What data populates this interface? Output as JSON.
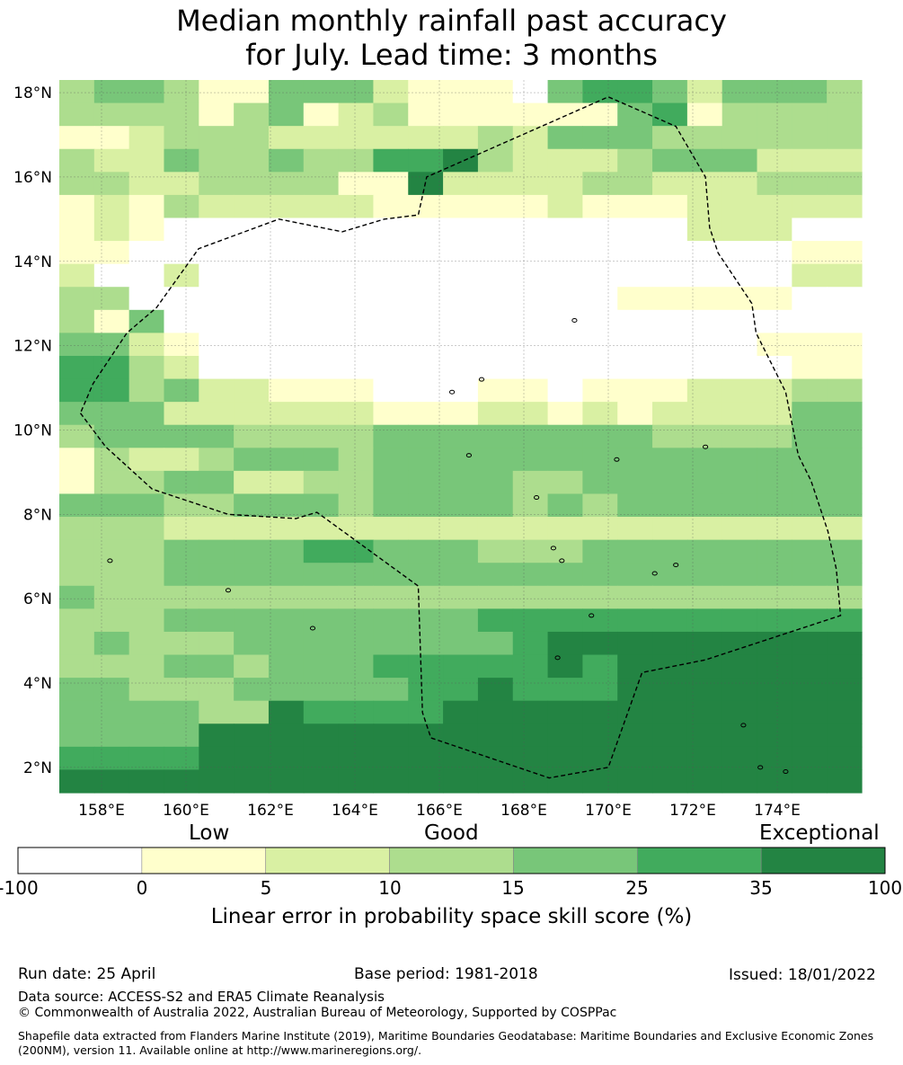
{
  "title_line1": "Median monthly rainfall past accuracy",
  "title_line2": "for July. Lead time: 3 months",
  "map": {
    "lon_range": [
      157,
      176
    ],
    "lat_range": [
      1.4,
      18.3
    ],
    "lon_ticks": [
      "158°E",
      "160°E",
      "162°E",
      "164°E",
      "166°E",
      "168°E",
      "170°E",
      "172°E",
      "174°E"
    ],
    "lat_ticks": [
      "18°N",
      "16°N",
      "14°N",
      "12°N",
      "10°N",
      "8°N",
      "6°N",
      "4°N",
      "2°N"
    ],
    "grid_cols": 23,
    "grid_rows": 31,
    "grid_rows_note_skipped": "",
    "cells": [
      "34431144421110455424443",
      "3333134123111111451333",
      "112333222222324443333",
      "3224334335563222344422",
      "33223333116222233222333",
      "1213222221111121112222",
      "1210000000000000002220",
      "1100000000000000000001",
      "2002000000000000000002",
      "3300000000000000111110",
      "3140000000000000000000",
      "4421000000000000000011",
      "5532000000000000000001",
      "5534221110001101112223",
      "4442222221112212122224",
      "3444433334444444433334",
      "1322344434444444444",
      "1334422334444334444",
      "4443344434444343444",
      "333222222",
      "3334444554443334444",
      "3334444444444444",
      "4333333333",
      "33344444444455555555",
      "3433344444444566666666",
      "3334434445555565666666",
      "4433344444556555666666",
      "4444336555566666",
      "4444666666666666666666",
      "5555666666666666666666",
      "6666666666666666666666"
    ],
    "eez_outline_label": "EEZ boundary"
  },
  "colors": {
    "bins": [
      "#ffffff",
      "#ffffcc",
      "#d9f0a3",
      "#addd8e",
      "#78c679",
      "#41ab5d",
      "#238443"
    ],
    "grid": "#555555",
    "boundary": "#000000"
  },
  "colorbar": {
    "word_low": "Low",
    "word_good": "Good",
    "word_exceptional": "Exceptional",
    "ticks": [
      "-100",
      "0",
      "5",
      "10",
      "15",
      "25",
      "35",
      "100"
    ],
    "label": "Linear error in probability space skill score (%)"
  },
  "footer": {
    "run_date": "Run date: 25 April",
    "base_period": "Base period: 1981-2018",
    "issued": "Issued: 18/01/2022",
    "data_source": "Data source: ACCESS-S2 and ERA5 Climate Reanalysis",
    "copyright": "© Commonwealth of Australia 2022, Australian Bureau of Meteorology, Supported by COSPPac",
    "shapefile": "Shapefile data extracted from Flanders Marine Institute (2019), Maritime Boundaries Geodatabase: Maritime Boundaries and Exclusive Economic Zones (200NM), version 11. Available online at http://www.marineregions.org/."
  }
}
